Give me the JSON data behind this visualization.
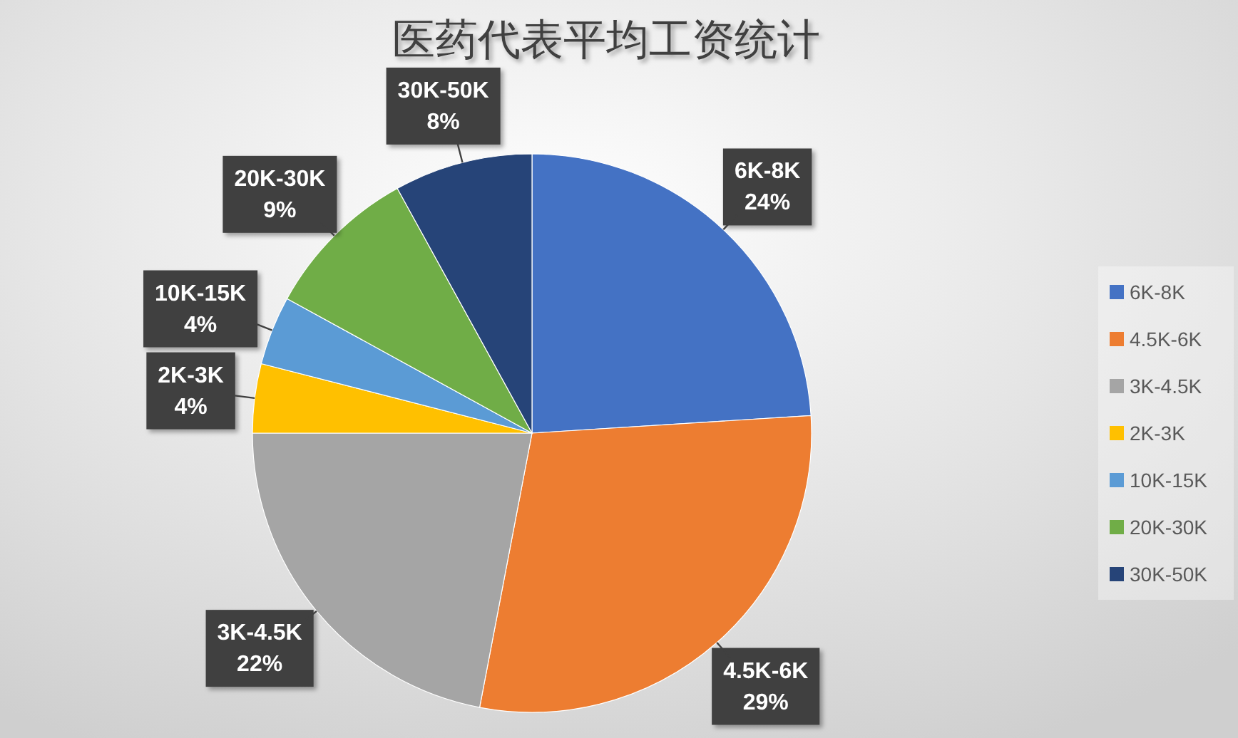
{
  "chart_data": {
    "type": "pie",
    "title": "医药代表平均工资统计",
    "categories": [
      "6K-8K",
      "4.5K-6K",
      "3K-4.5K",
      "2K-3K",
      "10K-15K",
      "20K-30K",
      "30K-50K"
    ],
    "values": [
      24,
      29,
      22,
      4,
      4,
      9,
      8
    ],
    "value_labels": [
      "24%",
      "29%",
      "22%",
      "4%",
      "4%",
      "9%",
      "8%"
    ],
    "colors": [
      "#4472c4",
      "#ed7d31",
      "#a5a5a5",
      "#ffc000",
      "#5b9bd5",
      "#70ad47",
      "#264478"
    ],
    "legend": "right"
  }
}
